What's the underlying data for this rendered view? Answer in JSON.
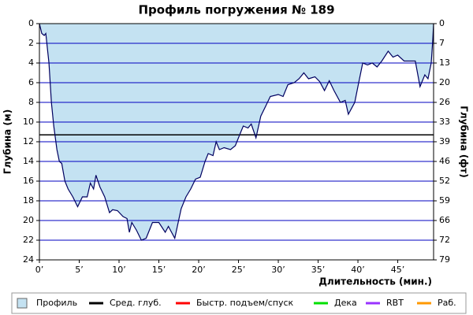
{
  "chart_data": {
    "type": "area",
    "title": "Профиль погружения № 189",
    "y_label": "Глубина (м)",
    "y2_label": "Глубина (фт)",
    "x_label": "Длительность (мин.)",
    "xlim": [
      0,
      49.5
    ],
    "ylim": [
      24,
      0
    ],
    "y2lim": [
      78.74,
      0
    ],
    "xticks": [
      {
        "value": 0,
        "label": "0’"
      },
      {
        "value": 5,
        "label": "5’"
      },
      {
        "value": 10,
        "label": "10’"
      },
      {
        "value": 15,
        "label": "15’"
      },
      {
        "value": 20,
        "label": "20’"
      },
      {
        "value": 25,
        "label": "25’"
      },
      {
        "value": 30,
        "label": "30’"
      },
      {
        "value": 35,
        "label": "35’"
      },
      {
        "value": 40,
        "label": "40’"
      },
      {
        "value": 45,
        "label": "45’"
      }
    ],
    "yticks": [
      0,
      2,
      4,
      6,
      8,
      10,
      12,
      14,
      16,
      18,
      20,
      22,
      24
    ],
    "y2ticks": [
      {
        "value": 0,
        "label": "0"
      },
      {
        "value": 6.56,
        "label": "7"
      },
      {
        "value": 13.12,
        "label": "13"
      },
      {
        "value": 19.69,
        "label": "20"
      },
      {
        "value": 26.25,
        "label": "26"
      },
      {
        "value": 32.81,
        "label": "33"
      },
      {
        "value": 39.37,
        "label": "39"
      },
      {
        "value": 45.93,
        "label": "46"
      },
      {
        "value": 52.49,
        "label": "52"
      },
      {
        "value": 59.06,
        "label": "59"
      },
      {
        "value": 65.62,
        "label": "66"
      },
      {
        "value": 72.18,
        "label": "72"
      },
      {
        "value": 78.74,
        "label": "79"
      }
    ],
    "grid": true,
    "grid_color": "#0000c0",
    "series": [
      {
        "name": "Профиль",
        "color": "#c4e2f2",
        "line_color": "#000060",
        "x": [
          0,
          0.3,
          0.6,
          0.8,
          1.2,
          1.5,
          1.8,
          2.2,
          2.5,
          2.8,
          3.2,
          3.6,
          4.2,
          4.8,
          5.4,
          6,
          6.4,
          6.8,
          7.1,
          7.6,
          8.2,
          8.8,
          9.2,
          9.8,
          10.5,
          11,
          11.3,
          11.6,
          12.2,
          12.8,
          13.4,
          14.2,
          15,
          15.8,
          16.2,
          17,
          17.8,
          18.4,
          19,
          19.6,
          20.2,
          20.8,
          21.2,
          21.8,
          22.2,
          22.6,
          23.2,
          24,
          24.6,
          25.2,
          25.6,
          26.2,
          26.6,
          27.2,
          27.8,
          28.4,
          29,
          30,
          30.6,
          31.2,
          32,
          32.6,
          33.2,
          33.8,
          34.6,
          35.2,
          35.8,
          36.4,
          37,
          37.8,
          38.4,
          38.8,
          39.6,
          40,
          40.6,
          41.2,
          41.8,
          42.4,
          43,
          43.8,
          44.4,
          45,
          45.8,
          46.6,
          47.2,
          47.8,
          48.4,
          48.8,
          49.2,
          49.4,
          49.5
        ],
        "values": [
          0,
          1,
          1.2,
          1,
          4,
          8,
          10.4,
          12.8,
          14,
          14.2,
          16,
          16.8,
          17.6,
          18.6,
          17.6,
          17.6,
          16.2,
          16.8,
          15.4,
          16.6,
          17.6,
          19.2,
          18.9,
          19,
          19.6,
          19.8,
          21.2,
          20.2,
          21,
          22,
          21.8,
          20.2,
          20.2,
          21.2,
          20.6,
          21.8,
          18.8,
          17.6,
          16.8,
          15.8,
          15.6,
          14,
          13.2,
          13.4,
          12,
          12.8,
          12.6,
          12.8,
          12.4,
          11.2,
          10.4,
          10.6,
          10.2,
          11.6,
          9.4,
          8.4,
          7.4,
          7.2,
          7.4,
          6.2,
          6,
          5.6,
          5,
          5.6,
          5.4,
          5.9,
          6.8,
          5.8,
          6.8,
          8,
          7.8,
          9.2,
          8,
          6.4,
          4,
          4.2,
          4,
          4.4,
          3.8,
          2.8,
          3.4,
          3.2,
          3.8,
          3.8,
          3.8,
          6.4,
          5.2,
          5.6,
          4,
          1.6,
          0
        ]
      },
      {
        "name": "Сред. глуб.",
        "color": "#000000",
        "values": [
          11.3
        ]
      },
      {
        "name": "Быстр. подъем/спуск",
        "color": "#ff0000",
        "values": []
      },
      {
        "name": "Дека",
        "color": "#00e000",
        "values": []
      },
      {
        "name": "RBT",
        "color": "#9933ff",
        "values": []
      },
      {
        "name": "Раб.",
        "color": "#ff9900",
        "values": []
      }
    ]
  }
}
